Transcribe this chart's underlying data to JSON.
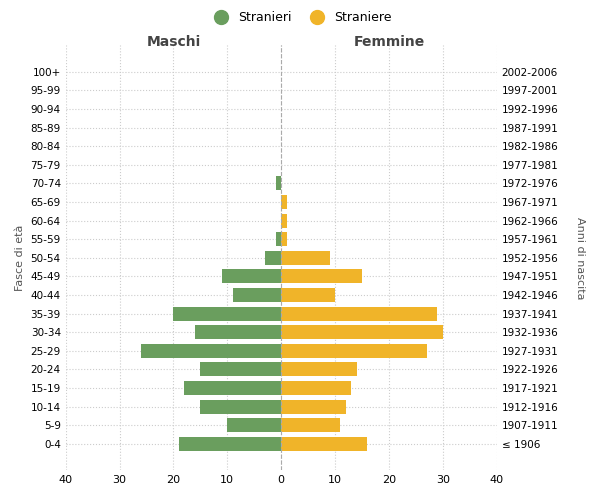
{
  "age_groups": [
    "100+",
    "95-99",
    "90-94",
    "85-89",
    "80-84",
    "75-79",
    "70-74",
    "65-69",
    "60-64",
    "55-59",
    "50-54",
    "45-49",
    "40-44",
    "35-39",
    "30-34",
    "25-29",
    "20-24",
    "15-19",
    "10-14",
    "5-9",
    "0-4"
  ],
  "birth_years": [
    "≤ 1906",
    "1907-1911",
    "1912-1916",
    "1917-1921",
    "1922-1926",
    "1927-1931",
    "1932-1936",
    "1937-1941",
    "1942-1946",
    "1947-1951",
    "1952-1956",
    "1957-1961",
    "1962-1966",
    "1967-1971",
    "1972-1976",
    "1977-1981",
    "1982-1986",
    "1987-1991",
    "1992-1996",
    "1997-2001",
    "2002-2006"
  ],
  "maschi": [
    0,
    0,
    0,
    0,
    0,
    0,
    1,
    0,
    0,
    1,
    3,
    11,
    9,
    20,
    16,
    26,
    15,
    18,
    15,
    10,
    19
  ],
  "femmine": [
    0,
    0,
    0,
    0,
    0,
    0,
    0,
    1,
    1,
    1,
    9,
    15,
    10,
    29,
    30,
    27,
    14,
    13,
    12,
    11,
    16
  ],
  "maschi_color": "#6a9e5e",
  "femmine_color": "#f0b429",
  "xlabel_left": "Maschi",
  "xlabel_right": "Femmine",
  "ylabel_left": "Fasce di età",
  "ylabel_right": "Anni di nascita",
  "legend_stranieri": "Stranieri",
  "legend_straniere": "Straniere",
  "xlim": 40,
  "background_color": "#ffffff",
  "grid_color": "#cccccc",
  "grid_linestyle": "dotted"
}
